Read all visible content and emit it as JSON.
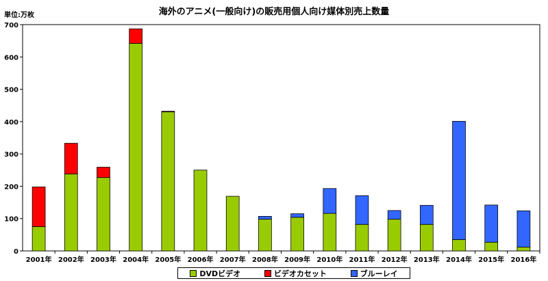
{
  "colors": {
    "dvd": "#99cc00",
    "videocassette": "#ff0000",
    "bluray": "#3366ff"
  },
  "chart_data": {
    "type": "bar",
    "stacked": true,
    "title": "海外のアニメ(一般向け)の販売用個人向け媒体別売上数量",
    "unit": "単位:万枚",
    "categories": [
      "2001年",
      "2002年",
      "2003年",
      "2004年",
      "2005年",
      "2006年",
      "2007年",
      "2008年",
      "2009年",
      "2010年",
      "2011年",
      "2012年",
      "2013年",
      "2014年",
      "2015年",
      "2016年"
    ],
    "series": [
      {
        "name": "DVDビデオ",
        "color": "#99cc00",
        "values": [
          75,
          238,
          227,
          642,
          430,
          250,
          169,
          98,
          104,
          116,
          82,
          98,
          82,
          35,
          27,
          12
        ]
      },
      {
        "name": "ビデオカセット",
        "color": "#ff0000",
        "values": [
          123,
          95,
          32,
          45,
          2,
          0,
          0,
          0,
          0,
          0,
          0,
          0,
          0,
          0,
          0,
          0
        ]
      },
      {
        "name": "ブルーレイ",
        "color": "#3366ff",
        "values": [
          0,
          0,
          0,
          0,
          0,
          0,
          0,
          9,
          11,
          77,
          89,
          27,
          59,
          366,
          115,
          112
        ]
      }
    ],
    "yticks": [
      "0",
      "100",
      "200",
      "300",
      "400",
      "500",
      "600",
      "700"
    ],
    "ylim": [
      0,
      700
    ],
    "grid": false,
    "legend": "bottom"
  }
}
